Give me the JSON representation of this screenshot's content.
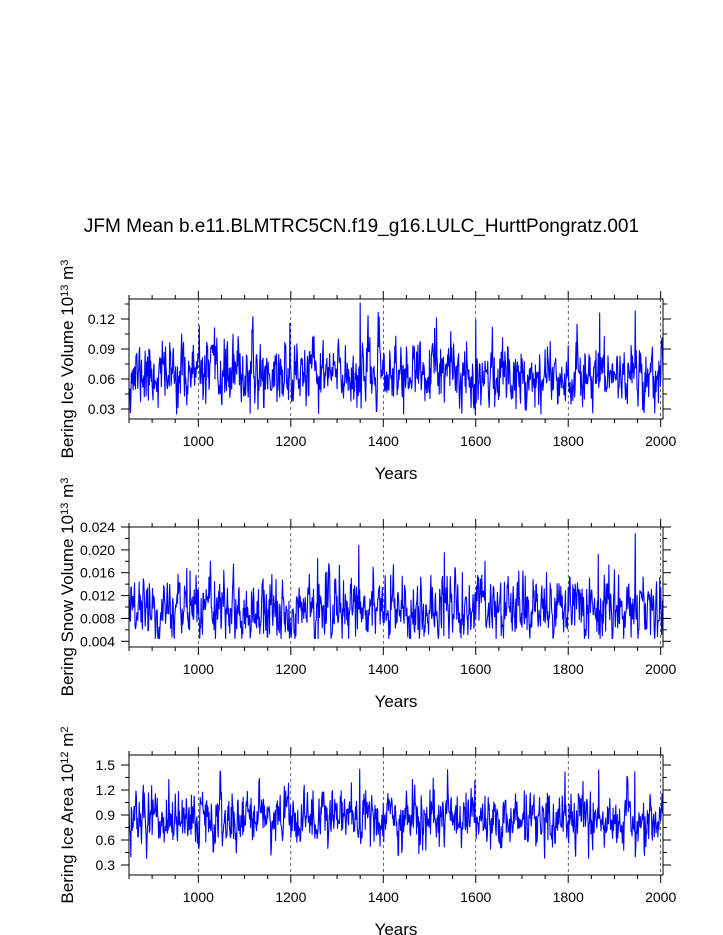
{
  "title": "JFM Mean b.e11.BLMTRC5CN.f19_g16.LULC_HurttPongratz.001",
  "colors": {
    "line": "#0000ff",
    "frame": "#000000",
    "grid": "#000000"
  },
  "chart_data": [
    {
      "type": "line",
      "name": "ice-volume",
      "xlabel": "Years",
      "ylabel": "Bering Ice Volume",
      "yunit": {
        "base": "10",
        "exp": "13",
        "unit": "m",
        "unit_exp": "3"
      },
      "xlim": [
        850,
        2005
      ],
      "ylim": [
        0.02,
        0.14
      ],
      "xticks": [
        1000,
        1200,
        1400,
        1600,
        1800,
        2000
      ],
      "xtick_labels": [
        "1000",
        "1200",
        "1400",
        "1600",
        "1800",
        "2000"
      ],
      "yticks": [
        0.03,
        0.06,
        0.09,
        0.12
      ],
      "ytick_labels": [
        "0.03",
        "0.06",
        "0.09",
        "0.12"
      ],
      "series": {
        "x_start": 850,
        "x_step": 1,
        "mean": 0.065,
        "sd": 0.016,
        "min": 0.025,
        "max": 0.136,
        "seed": 11,
        "peaks": [
          [
            1350,
            0.136
          ],
          [
            1945,
            0.128
          ],
          [
            1868,
            0.126
          ],
          [
            1515,
            0.121
          ],
          [
            1600,
            0.119
          ],
          [
            1198,
            0.116
          ]
        ]
      }
    },
    {
      "type": "line",
      "name": "snow-volume",
      "xlabel": "Years",
      "ylabel": "Bering Snow Volume",
      "yunit": {
        "base": "10",
        "exp": "13",
        "unit": "m",
        "unit_exp": "3"
      },
      "xlim": [
        850,
        2005
      ],
      "ylim": [
        0.003,
        0.024
      ],
      "xticks": [
        1000,
        1200,
        1400,
        1600,
        1800,
        2000
      ],
      "xtick_labels": [
        "1000",
        "1200",
        "1400",
        "1600",
        "1800",
        "2000"
      ],
      "yticks": [
        0.004,
        0.008,
        0.012,
        0.016,
        0.02,
        0.024
      ],
      "ytick_labels": [
        "0.004",
        "0.008",
        "0.012",
        "0.016",
        "0.020",
        "0.024"
      ],
      "series": {
        "x_start": 850,
        "x_step": 1,
        "mean": 0.0098,
        "sd": 0.0028,
        "min": 0.0045,
        "max": 0.0228,
        "seed": 29,
        "peaks": [
          [
            1945,
            0.0228
          ],
          [
            1347,
            0.0208
          ],
          [
            1532,
            0.0195
          ],
          [
            1865,
            0.0192
          ],
          [
            1258,
            0.0185
          ],
          [
            1620,
            0.018
          ]
        ]
      }
    },
    {
      "type": "line",
      "name": "ice-area",
      "xlabel": "Years",
      "ylabel": "Bering Ice Area",
      "yunit": {
        "base": "10",
        "exp": "12",
        "unit": "m",
        "unit_exp": "2"
      },
      "xlim": [
        850,
        2005
      ],
      "ylim": [
        0.18,
        1.62
      ],
      "xticks": [
        1000,
        1200,
        1400,
        1600,
        1800,
        2000
      ],
      "xtick_labels": [
        "1000",
        "1200",
        "1400",
        "1600",
        "1800",
        "2000"
      ],
      "yticks": [
        0.3,
        0.6,
        0.9,
        1.2,
        1.5
      ],
      "ytick_labels": [
        "0.3",
        "0.6",
        "0.9",
        "1.2",
        "1.5"
      ],
      "series": {
        "x_start": 850,
        "x_step": 1,
        "mean": 0.86,
        "sd": 0.17,
        "min": 0.38,
        "max": 1.45,
        "seed": 47,
        "peaks": [
          [
            1349,
            1.45
          ],
          [
            1866,
            1.44
          ],
          [
            1944,
            1.42
          ],
          [
            1508,
            1.34
          ],
          [
            1598,
            1.31
          ],
          [
            1195,
            1.28
          ]
        ]
      }
    }
  ]
}
